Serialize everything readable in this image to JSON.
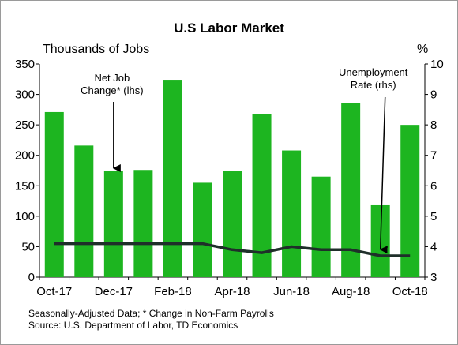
{
  "chart_data": {
    "type": "bar",
    "title": "U.S Labor Market",
    "y_left_label": "Thousands of Jobs",
    "y_right_label": "%",
    "categories": [
      "Oct-17",
      "Nov-17",
      "Dec-17",
      "Jan-18",
      "Feb-18",
      "Mar-18",
      "Apr-18",
      "May-18",
      "Jun-18",
      "Jul-18",
      "Aug-18",
      "Sep-18",
      "Oct-18"
    ],
    "x_tick_labels": [
      "Oct-17",
      "Dec-17",
      "Feb-18",
      "Apr-18",
      "Jun-18",
      "Aug-18",
      "Oct-18"
    ],
    "ylim_left": [
      0,
      350
    ],
    "yticks_left": [
      0,
      50,
      100,
      150,
      200,
      250,
      300,
      350
    ],
    "ylim_right": [
      3,
      10
    ],
    "yticks_right": [
      3,
      4,
      5,
      6,
      7,
      8,
      9,
      10
    ],
    "series": [
      {
        "name": "Net Job Change* (lhs)",
        "type": "bar",
        "axis": "left",
        "color": "#1DB520",
        "values": [
          271,
          216,
          175,
          176,
          324,
          155,
          175,
          268,
          208,
          165,
          286,
          118,
          250
        ]
      },
      {
        "name": "Unemployment Rate (rhs)",
        "type": "line",
        "axis": "right",
        "color": "#1f2f2a",
        "values": [
          4.1,
          4.1,
          4.1,
          4.1,
          4.1,
          4.1,
          3.9,
          3.8,
          4.0,
          3.9,
          3.9,
          3.7,
          3.7
        ]
      }
    ],
    "annotations": [
      {
        "lines": [
          "Net Job",
          "Change* (lhs)"
        ],
        "series": 0,
        "points_to_category": "Dec-17"
      },
      {
        "lines": [
          "Unemployment",
          "Rate (rhs)"
        ],
        "series": 1,
        "points_to_category": "Sep-18"
      }
    ],
    "grid": false,
    "legend": "none"
  },
  "footnotes": [
    "Seasonally-Adjusted Data; * Change in Non-Farm Payrolls",
    "Source: U.S. Department of Labor, TD Economics"
  ]
}
